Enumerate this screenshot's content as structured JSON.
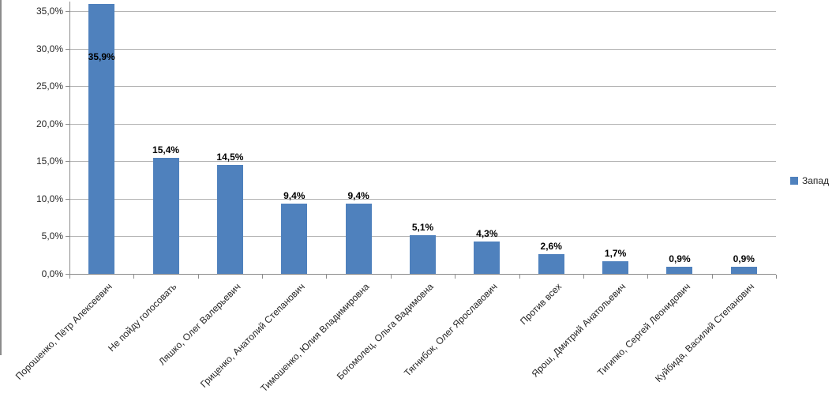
{
  "chart_data": {
    "type": "bar",
    "title": "",
    "xlabel": "",
    "ylabel": "",
    "grid": true,
    "ylim": [
      0,
      36.2
    ],
    "categories": [
      "Порошенко, Пётр Алексеевич",
      "Не пойду голосовать",
      "Ляшко, Олег Валерьевич",
      "Гриценко, Анатолий Степанович",
      "Тимошенко, Юлия Владимировна",
      "Богомолец, Ольга Вадимовна",
      "Тягнибок, Олег Ярославович",
      "Против всех",
      "Ярош, Дмитрий Анатольевич",
      "Тигипко, Сергей Леонидович",
      "Куйбида, Василий Степанович"
    ],
    "series": [
      {
        "name": "Запад",
        "values": [
          35.9,
          15.4,
          14.5,
          9.4,
          9.4,
          5.1,
          4.3,
          2.6,
          1.7,
          0.9,
          0.9
        ],
        "value_labels": [
          "35,9%",
          "15,4%",
          "14,5%",
          "9,4%",
          "9,4%",
          "5,1%",
          "4,3%",
          "2,6%",
          "1,7%",
          "0,9%",
          "0,9%"
        ]
      }
    ],
    "y_ticks": [
      {
        "value": 0,
        "label": "0,0%"
      },
      {
        "value": 5,
        "label": "5,0%"
      },
      {
        "value": 10,
        "label": "10,0%"
      },
      {
        "value": 15,
        "label": "15,0%"
      },
      {
        "value": 20,
        "label": "20,0%"
      },
      {
        "value": 25,
        "label": "25,0%"
      },
      {
        "value": 30,
        "label": "30,0%"
      },
      {
        "value": 35,
        "label": "35,0%"
      }
    ],
    "legend": {
      "label": "Запад",
      "position": "right"
    },
    "colors": {
      "bar": "#4F81BD",
      "gridline": "#B3B3B3",
      "axis": "#8C8C8C",
      "tick_label": "#262626",
      "data_label": "#000000",
      "edge_line": "#8C8C8C"
    }
  }
}
